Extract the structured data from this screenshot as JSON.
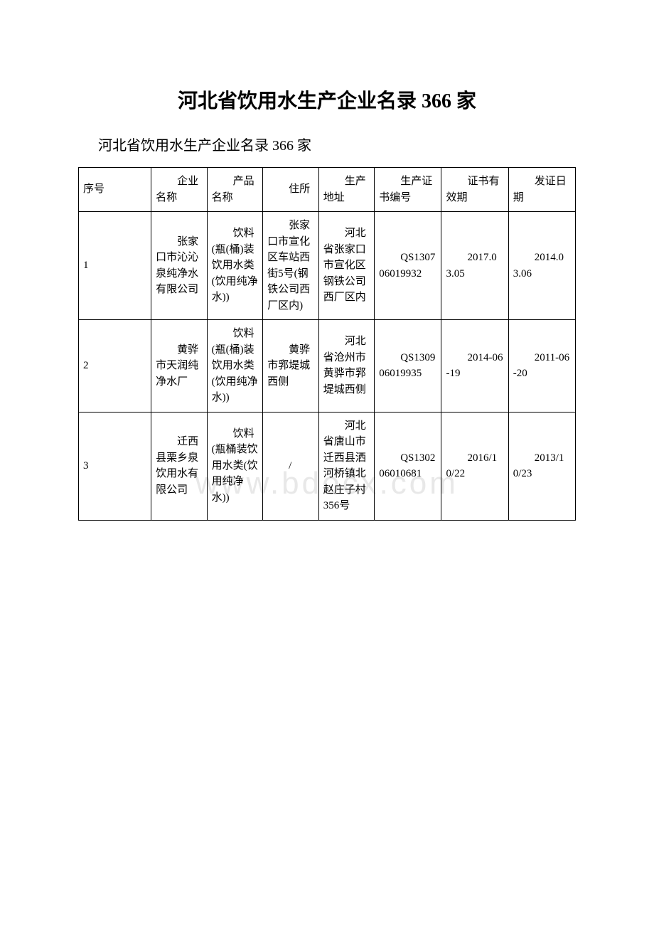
{
  "document": {
    "title": "河北省饮用水生产企业名录 366 家",
    "subtitle": "河北省饮用水生产企业名录 366 家",
    "watermark": "www.bdocx.com",
    "table": {
      "columns": [
        "序号",
        "企业名称",
        "产品名称",
        "住所",
        "生产地址",
        "生产证书编号",
        "证书有效期",
        "发证日期"
      ],
      "rows": [
        {
          "seq": "1",
          "company": "张家口市沁沁泉纯净水有限公司",
          "product": "饮料(瓶(桶)装饮用水类(饮用纯净水))",
          "address": "张家口市宣化区车站西街5号(钢铁公司西厂区内)",
          "prod_address": "河北省张家口市宣化区钢铁公司西厂区内",
          "cert_no": "QS130706019932",
          "valid": "2017.03.05",
          "issued": "2014.03.06"
        },
        {
          "seq": "2",
          "company": "黄骅市天润纯净水厂",
          "product": "饮料(瓶(桶)装饮用水类(饮用纯净水))",
          "address": "黄骅市郛堤城西侧",
          "prod_address": "河北省沧州市黄骅市郛堤城西侧",
          "cert_no": "QS130906019935",
          "valid": "2014-06-19",
          "issued": "2011-06-20"
        },
        {
          "seq": "3",
          "company": "迁西县栗乡泉饮用水有限公司",
          "product": "饮料(瓶桶装饮用水类(饮用纯净水))",
          "address": "/",
          "prod_address": "河北省唐山市迁西县洒河桥镇北赵庄子村356号",
          "cert_no": "QS130206010681",
          "valid": "2016/10/22",
          "issued": "2013/10/23"
        }
      ]
    },
    "style": {
      "border_color": "#000000",
      "text_color": "#000000",
      "background": "#ffffff",
      "watermark_color": "#e8e8e8",
      "title_fontsize": 28,
      "subtitle_fontsize": 20,
      "cell_fontsize": 15
    }
  }
}
